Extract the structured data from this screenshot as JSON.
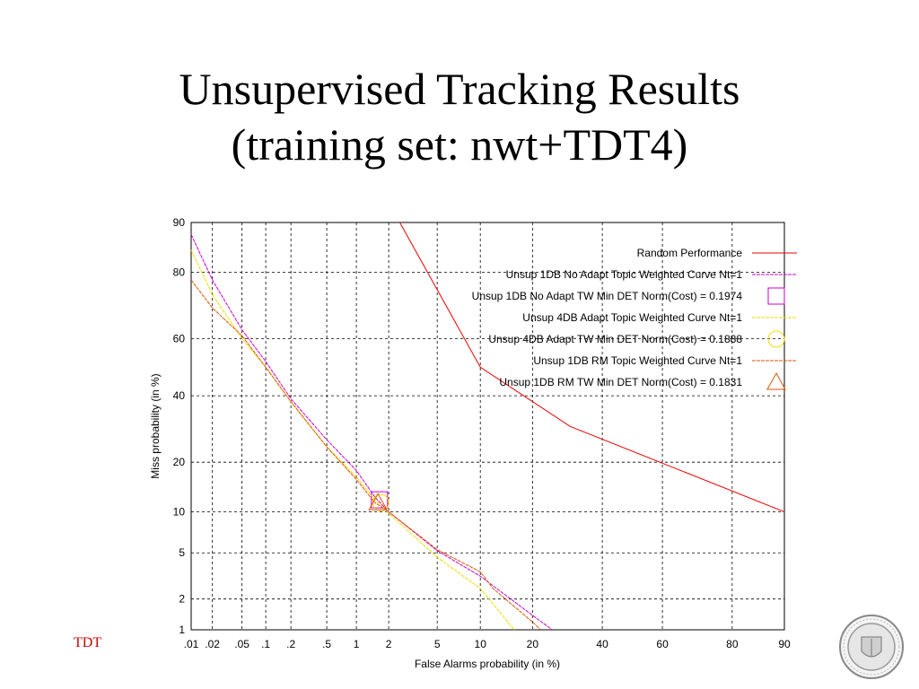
{
  "slide": {
    "title_line1": "Unsupervised Tracking Results",
    "title_line2": "(training set: nwt+TDT4)",
    "footer_left": "TDT"
  },
  "chart_data": {
    "type": "line",
    "xlabel": "False Alarms probability (in %)",
    "ylabel": "Miss probability (in %)",
    "x_scale": "normal-deviate",
    "y_scale": "normal-deviate",
    "xlim": [
      0.01,
      90
    ],
    "ylim": [
      1,
      90
    ],
    "x_ticks": [
      ".01",
      ".02",
      ".05",
      ".1",
      ".2",
      ".5",
      "1",
      "2",
      "5",
      "10",
      "20",
      "40",
      "60",
      "80",
      "90"
    ],
    "y_ticks": [
      "1",
      "2",
      "5",
      "10",
      "20",
      "40",
      "60",
      "80",
      "90"
    ],
    "grid": true,
    "legend_position": "top-right",
    "series": [
      {
        "name": "Random Performance",
        "color": "#ee0000",
        "style": "solid",
        "points": [
          [
            2.5,
            90
          ],
          [
            10,
            50
          ],
          [
            30,
            30
          ],
          [
            90,
            10
          ]
        ]
      },
      {
        "name": "Unsup 1DB No Adapt Topic Weighted Curve Nt=1",
        "color": "#cc00cc",
        "style": "dashed",
        "points": [
          [
            0.01,
            88
          ],
          [
            0.02,
            78
          ],
          [
            0.05,
            63
          ],
          [
            0.1,
            52
          ],
          [
            0.2,
            39
          ],
          [
            0.5,
            26
          ],
          [
            1,
            18
          ],
          [
            1.5,
            12.5
          ],
          [
            2,
            10
          ],
          [
            5,
            5.2
          ],
          [
            10,
            3.2
          ],
          [
            20,
            1.4
          ],
          [
            25,
            1
          ]
        ]
      },
      {
        "name": "Unsup 1DB No Adapt TW Min DET Norm(Cost) = 0.1974",
        "color": "#cc00cc",
        "marker": "square",
        "points": [
          [
            1.65,
            12
          ]
        ]
      },
      {
        "name": "Unsup 4DB Adapt  Topic Weighted Curve Nt=1",
        "color": "#eedd00",
        "style": "dashed",
        "points": [
          [
            0.01,
            85
          ],
          [
            0.02,
            74
          ],
          [
            0.05,
            60
          ],
          [
            0.1,
            50
          ],
          [
            0.2,
            38
          ],
          [
            0.5,
            24
          ],
          [
            1,
            16.5
          ],
          [
            1.5,
            12
          ],
          [
            2,
            9.8
          ],
          [
            5,
            4.6
          ],
          [
            10,
            2.5
          ],
          [
            16,
            1
          ]
        ]
      },
      {
        "name": "Unsup 4DB Adapt TW Min DET Norm(Cost) = 0.1888",
        "color": "#eedd00",
        "marker": "circle",
        "points": [
          [
            1.7,
            11.5
          ]
        ]
      },
      {
        "name": "Unsup 1DB RM  Topic Weighted Curve Nt=1",
        "color": "#dd5500",
        "style": "dashed",
        "points": [
          [
            0.01,
            78
          ],
          [
            0.02,
            70
          ],
          [
            0.05,
            61
          ],
          [
            0.1,
            50
          ],
          [
            0.2,
            38
          ],
          [
            0.5,
            24
          ],
          [
            1,
            16
          ],
          [
            1.5,
            11.5
          ],
          [
            2,
            10
          ],
          [
            5,
            5.3
          ],
          [
            10,
            3.5
          ],
          [
            12,
            2.5
          ],
          [
            20,
            1.2
          ],
          [
            22,
            1
          ]
        ]
      },
      {
        "name": "Unsup 1DB RM TW Min DET Norm(Cost) = 0.1831",
        "color": "#dd5500",
        "marker": "triangle",
        "points": [
          [
            1.6,
            11.5
          ]
        ]
      }
    ]
  }
}
